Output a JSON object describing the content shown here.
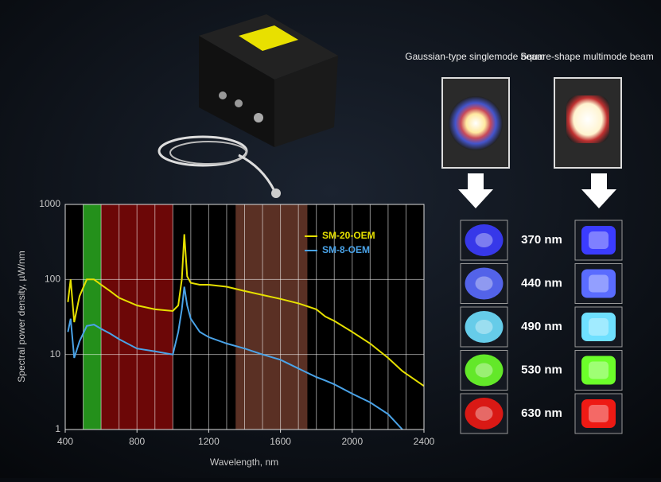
{
  "chart_data": {
    "type": "line",
    "x_label": "Wavelength, nm",
    "y_label": "Spectral power density, µW/nm",
    "x": [
      415,
      430,
      450,
      480,
      520,
      560,
      600,
      650,
      700,
      800,
      900,
      1000,
      1030,
      1050,
      1064,
      1080,
      1100,
      1150,
      1200,
      1300,
      1400,
      1500,
      1600,
      1700,
      1800,
      1850,
      1900,
      2000,
      2100,
      2200,
      2280,
      2400
    ],
    "series": [
      {
        "name": "SM-20-OEM",
        "color": "#e6e000",
        "values": [
          50,
          100,
          27,
          60,
          100,
          100,
          85,
          70,
          57,
          45,
          40,
          38,
          45,
          100,
          400,
          110,
          90,
          85,
          85,
          80,
          70,
          62,
          55,
          48,
          40,
          32,
          28,
          20,
          14,
          9,
          6,
          3.8
        ]
      },
      {
        "name": "SM-8-OEM",
        "color": "#4aa3e8",
        "values": [
          20,
          30,
          9,
          15,
          24,
          25,
          22,
          19,
          16,
          12,
          11,
          10,
          20,
          40,
          80,
          45,
          30,
          20,
          17,
          14,
          12,
          10,
          8.5,
          6.5,
          5,
          4.5,
          4,
          3,
          2.3,
          1.6,
          1,
          null
        ]
      }
    ],
    "xlim": [
      400,
      2400
    ],
    "xticks": [
      400,
      800,
      1200,
      1600,
      2000,
      2400
    ],
    "ylim": [
      1,
      1000
    ],
    "yticks": [
      1,
      10,
      100,
      1000
    ],
    "ylog": true,
    "xgrid": [
      400,
      500,
      600,
      700,
      800,
      900,
      1000,
      1100,
      1200,
      1300,
      1400,
      1500,
      1600,
      1700,
      1800,
      1900,
      2000,
      2100,
      2200,
      2300,
      2400
    ],
    "bands": [
      {
        "xlim": [
          500,
          600
        ],
        "color": "rgba(40,160,30,0.9)"
      },
      {
        "xlim": [
          600,
          1000
        ],
        "color": "rgba(150,10,10,0.72)"
      },
      {
        "xlim": [
          1350,
          1750
        ],
        "color": "rgba(150,80,60,0.6)"
      }
    ],
    "legend": "upper right"
  },
  "beam_panel": {
    "headers": [
      "Gaussian-type singlemode beam",
      "Square-shape multimode beam"
    ],
    "rows": [
      {
        "label": "370 nm",
        "color": "#3b3cff"
      },
      {
        "label": "440 nm",
        "color": "#5a6cff"
      },
      {
        "label": "490 nm",
        "color": "#6fe0ff"
      },
      {
        "label": "530 nm",
        "color": "#6cff2a"
      },
      {
        "label": "630 nm",
        "color": "#ee1a14"
      }
    ]
  }
}
